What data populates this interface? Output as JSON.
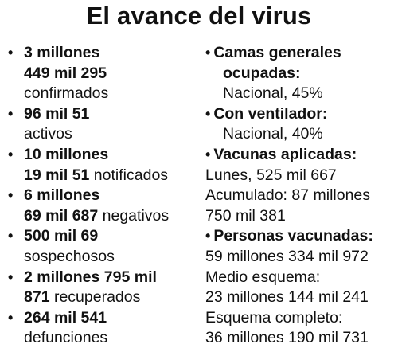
{
  "title": "El avance del virus",
  "bullet_symbol": "•",
  "left": [
    {
      "bold": [
        "3 millones",
        "449 mil 295"
      ],
      "tail_plain": "confirmados",
      "tail_inline": ""
    },
    {
      "bold": [
        "96 mil 51"
      ],
      "tail_plain": "activos",
      "tail_inline": ""
    },
    {
      "bold": [
        "10 millones",
        "19 mil 51"
      ],
      "tail_plain": "",
      "tail_inline": " notificados"
    },
    {
      "bold": [
        "6 millones",
        "69 mil 687"
      ],
      "tail_plain": "",
      "tail_inline": " negativos"
    },
    {
      "bold": [
        "500 mil 69"
      ],
      "tail_plain": "sospechosos",
      "tail_inline": ""
    },
    {
      "bold": [
        "2 millones 795 mil",
        "871"
      ],
      "tail_plain": "",
      "tail_inline": " recuperados"
    },
    {
      "bold": [
        "264 mil 541"
      ],
      "tail_plain": "defunciones",
      "tail_inline": ""
    }
  ],
  "right": {
    "camas_label_1": "Camas generales",
    "camas_label_2": "ocupadas:",
    "camas_value": "Nacional, 45%",
    "ventilador_label": "Con ventilador:",
    "ventilador_value": "Nacional, 40%",
    "vacunas_label": "Vacunas aplicadas:",
    "vacunas_lunes": "Lunes, 525 mil 667",
    "vacunas_acum_1": "Acumulado: 87 millones",
    "vacunas_acum_2": "750 mil 381",
    "personas_label": "Personas vacunadas:",
    "personas_total": "59 millones 334 mil 972",
    "medio_label": "Medio esquema:",
    "medio_value": "23 millones 144 mil 241",
    "completo_label": "Esquema completo:",
    "completo_value": "36 millones 190 mil 731"
  }
}
